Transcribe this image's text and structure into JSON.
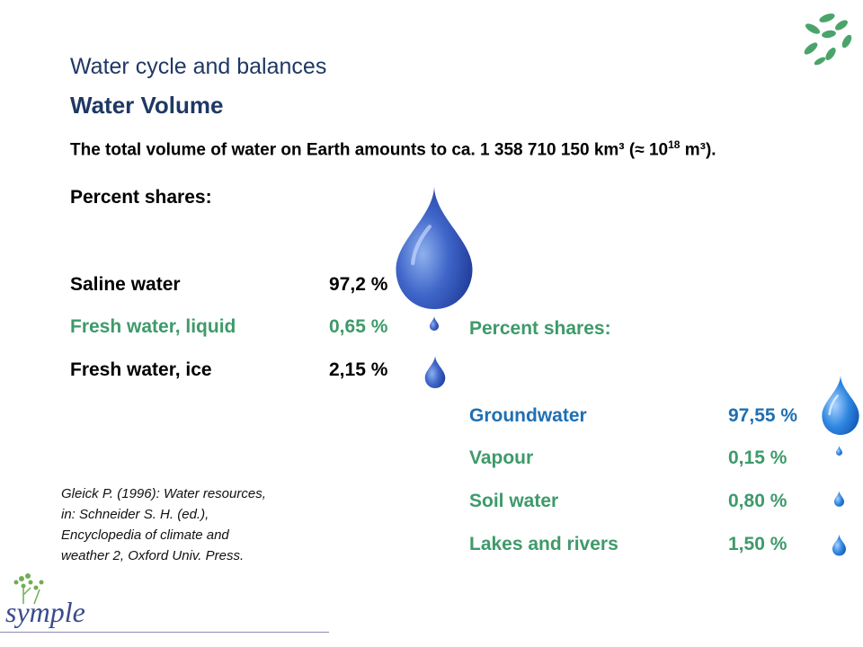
{
  "header": {
    "subtitle": "Water cycle and balances",
    "title": "Water Volume"
  },
  "intro": {
    "text_before": "The total volume of water on Earth amounts to ca. 1 358 710 150 km³ (≈ 10",
    "exponent": "18",
    "text_after": " m³)."
  },
  "left_table": {
    "heading": "Percent shares:",
    "rows": [
      {
        "label": "Saline water",
        "value": "97,2 %"
      },
      {
        "label": "Fresh water, liquid",
        "value": "0,65 %"
      },
      {
        "label": "Fresh water, ice",
        "value": "2,15 %"
      }
    ]
  },
  "right_table": {
    "heading": "Percent shares:",
    "rows": [
      {
        "label": "Groundwater",
        "value": "97,55 %"
      },
      {
        "label": "Vapour",
        "value": "0,15 %"
      },
      {
        "label": "Soil water",
        "value": "0,80 %"
      },
      {
        "label": "Lakes and rivers",
        "value": "1,50 %"
      }
    ]
  },
  "citation": {
    "lines": [
      "Gleick P. (1996): Water resources,",
      "in: Schneider S. H. (ed.),",
      "Encyclopedia of climate and",
      "weather 2, Oxford Univ. Press."
    ]
  },
  "logo": {
    "text": "symple"
  },
  "colors": {
    "title_navy": "#1f3864",
    "green": "#3e9a6a",
    "blue": "#1f6fb2",
    "drop_dark": "#1e3f9e",
    "drop_light": "#7fa0e8"
  },
  "icons": [
    "water-drop-icon",
    "leaves-icon",
    "symple-logo"
  ]
}
